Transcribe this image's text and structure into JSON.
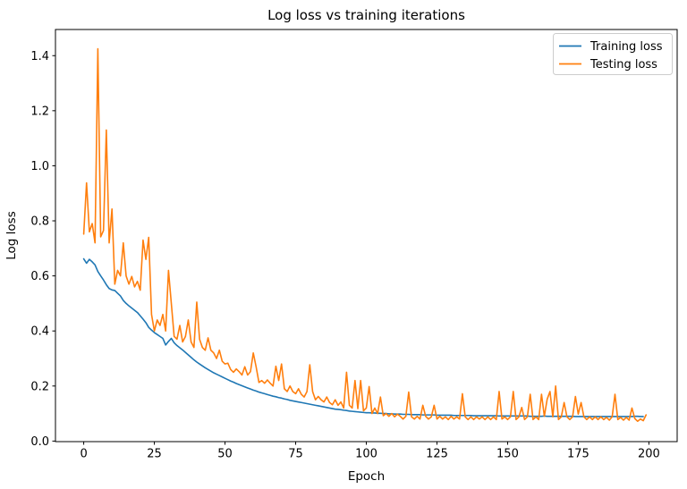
{
  "figure": {
    "background": "#ffffff",
    "frame_color": "#000000",
    "accent_colors": {
      "training": "#1f77b4",
      "testing": "#ff7f0e"
    }
  },
  "chart_data": {
    "type": "line",
    "title": "Log loss vs training iterations",
    "xlabel": "Epoch",
    "ylabel": "Log loss",
    "xlim": [
      -10,
      210
    ],
    "ylim": [
      -0.002,
      1.495
    ],
    "xticks": [
      0,
      25,
      50,
      75,
      100,
      125,
      150,
      175,
      200
    ],
    "xtick_labels": [
      "0",
      "25",
      "50",
      "75",
      "100",
      "125",
      "150",
      "175",
      "200"
    ],
    "yticks": [
      0.0,
      0.2,
      0.4,
      0.6,
      0.8,
      1.0,
      1.2,
      1.4
    ],
    "ytick_labels": [
      "0.0",
      "0.2",
      "0.4",
      "0.6",
      "0.8",
      "1.0",
      "1.2",
      "1.4"
    ],
    "grid": false,
    "legend_position": "upper right",
    "x": [
      0,
      1,
      2,
      3,
      4,
      5,
      6,
      7,
      8,
      9,
      10,
      11,
      12,
      13,
      14,
      15,
      16,
      17,
      18,
      19,
      20,
      21,
      22,
      23,
      24,
      25,
      26,
      27,
      28,
      29,
      30,
      31,
      32,
      33,
      34,
      35,
      36,
      37,
      38,
      39,
      40,
      41,
      42,
      43,
      44,
      45,
      46,
      47,
      48,
      49,
      50,
      51,
      52,
      53,
      54,
      55,
      56,
      57,
      58,
      59,
      60,
      61,
      62,
      63,
      64,
      65,
      66,
      67,
      68,
      69,
      70,
      71,
      72,
      73,
      74,
      75,
      76,
      77,
      78,
      79,
      80,
      81,
      82,
      83,
      84,
      85,
      86,
      87,
      88,
      89,
      90,
      91,
      92,
      93,
      94,
      95,
      96,
      97,
      98,
      99,
      100,
      101,
      102,
      103,
      104,
      105,
      106,
      107,
      108,
      109,
      110,
      111,
      112,
      113,
      114,
      115,
      116,
      117,
      118,
      119,
      120,
      121,
      122,
      123,
      124,
      125,
      126,
      127,
      128,
      129,
      130,
      131,
      132,
      133,
      134,
      135,
      136,
      137,
      138,
      139,
      140,
      141,
      142,
      143,
      144,
      145,
      146,
      147,
      148,
      149,
      150,
      151,
      152,
      153,
      154,
      155,
      156,
      157,
      158,
      159,
      160,
      161,
      162,
      163,
      164,
      165,
      166,
      167,
      168,
      169,
      170,
      171,
      172,
      173,
      174,
      175,
      176,
      177,
      178,
      179,
      180,
      181,
      182,
      183,
      184,
      185,
      186,
      187,
      188,
      189,
      190,
      191,
      192,
      193,
      194,
      195,
      196,
      197,
      198,
      199
    ],
    "series": [
      {
        "name": "Training loss",
        "color": "#1f77b4",
        "values": [
          0.662,
          0.646,
          0.66,
          0.651,
          0.64,
          0.616,
          0.6,
          0.585,
          0.568,
          0.554,
          0.549,
          0.547,
          0.537,
          0.527,
          0.511,
          0.5,
          0.491,
          0.483,
          0.475,
          0.467,
          0.455,
          0.443,
          0.43,
          0.413,
          0.403,
          0.394,
          0.387,
          0.38,
          0.373,
          0.349,
          0.362,
          0.373,
          0.357,
          0.347,
          0.339,
          0.331,
          0.322,
          0.313,
          0.304,
          0.295,
          0.287,
          0.28,
          0.273,
          0.266,
          0.26,
          0.254,
          0.248,
          0.243,
          0.238,
          0.233,
          0.228,
          0.223,
          0.218,
          0.214,
          0.209,
          0.205,
          0.201,
          0.197,
          0.193,
          0.189,
          0.185,
          0.182,
          0.178,
          0.175,
          0.172,
          0.169,
          0.166,
          0.163,
          0.161,
          0.158,
          0.156,
          0.153,
          0.151,
          0.148,
          0.146,
          0.144,
          0.142,
          0.14,
          0.138,
          0.136,
          0.134,
          0.132,
          0.13,
          0.128,
          0.126,
          0.124,
          0.122,
          0.12,
          0.118,
          0.116,
          0.115,
          0.114,
          0.112,
          0.111,
          0.109,
          0.108,
          0.107,
          0.106,
          0.105,
          0.104,
          0.103,
          0.103,
          0.102,
          0.102,
          0.101,
          0.101,
          0.1,
          0.1,
          0.099,
          0.099,
          0.098,
          0.098,
          0.098,
          0.097,
          0.097,
          0.097,
          0.096,
          0.096,
          0.096,
          0.096,
          0.095,
          0.095,
          0.095,
          0.095,
          0.095,
          0.094,
          0.094,
          0.094,
          0.094,
          0.094,
          0.094,
          0.093,
          0.093,
          0.093,
          0.093,
          0.093,
          0.093,
          0.093,
          0.092,
          0.092,
          0.092,
          0.092,
          0.092,
          0.092,
          0.092,
          0.092,
          0.092,
          0.091,
          0.091,
          0.091,
          0.091,
          0.091,
          0.091,
          0.091,
          0.091,
          0.091,
          0.091,
          0.091,
          0.09,
          0.09,
          0.09,
          0.09,
          0.09,
          0.091,
          0.09,
          0.09,
          0.09,
          0.09,
          0.09,
          0.09,
          0.09,
          0.09,
          0.09,
          0.09,
          0.089,
          0.089,
          0.089,
          0.089,
          0.089,
          0.089,
          0.089,
          0.089,
          0.089,
          0.089,
          0.089,
          0.089,
          0.089,
          0.089,
          0.089,
          0.089,
          0.089,
          0.089,
          0.089,
          0.089,
          0.089,
          0.09,
          0.09,
          0.089,
          0.089
        ]
      },
      {
        "name": "Testing loss",
        "color": "#ff7f0e",
        "values": [
          0.752,
          0.938,
          0.76,
          0.79,
          0.72,
          1.425,
          0.742,
          0.765,
          1.13,
          0.72,
          0.843,
          0.57,
          0.62,
          0.6,
          0.72,
          0.6,
          0.57,
          0.598,
          0.56,
          0.58,
          0.548,
          0.73,
          0.66,
          0.74,
          0.46,
          0.4,
          0.44,
          0.42,
          0.46,
          0.4,
          0.62,
          0.5,
          0.38,
          0.37,
          0.42,
          0.36,
          0.38,
          0.44,
          0.36,
          0.34,
          0.505,
          0.37,
          0.34,
          0.33,
          0.375,
          0.33,
          0.32,
          0.3,
          0.33,
          0.29,
          0.28,
          0.283,
          0.26,
          0.25,
          0.262,
          0.252,
          0.24,
          0.27,
          0.24,
          0.252,
          0.32,
          0.27,
          0.213,
          0.22,
          0.21,
          0.222,
          0.21,
          0.2,
          0.272,
          0.22,
          0.28,
          0.19,
          0.18,
          0.2,
          0.18,
          0.172,
          0.19,
          0.17,
          0.16,
          0.18,
          0.277,
          0.18,
          0.15,
          0.162,
          0.15,
          0.142,
          0.16,
          0.14,
          0.132,
          0.15,
          0.13,
          0.142,
          0.12,
          0.25,
          0.13,
          0.12,
          0.22,
          0.118,
          0.22,
          0.11,
          0.12,
          0.198,
          0.1,
          0.12,
          0.1,
          0.16,
          0.092,
          0.1,
          0.09,
          0.1,
          0.088,
          0.098,
          0.09,
          0.08,
          0.09,
          0.178,
          0.088,
          0.08,
          0.09,
          0.08,
          0.13,
          0.09,
          0.08,
          0.088,
          0.13,
          0.08,
          0.09,
          0.08,
          0.088,
          0.078,
          0.09,
          0.08,
          0.088,
          0.08,
          0.172,
          0.088,
          0.078,
          0.088,
          0.078,
          0.088,
          0.08,
          0.088,
          0.078,
          0.088,
          0.078,
          0.088,
          0.078,
          0.18,
          0.08,
          0.088,
          0.078,
          0.088,
          0.18,
          0.078,
          0.088,
          0.122,
          0.078,
          0.088,
          0.17,
          0.078,
          0.088,
          0.078,
          0.17,
          0.09,
          0.152,
          0.18,
          0.088,
          0.2,
          0.078,
          0.088,
          0.14,
          0.088,
          0.078,
          0.088,
          0.162,
          0.098,
          0.14,
          0.088,
          0.078,
          0.088,
          0.078,
          0.088,
          0.078,
          0.088,
          0.078,
          0.086,
          0.076,
          0.088,
          0.17,
          0.078,
          0.086,
          0.076,
          0.086,
          0.076,
          0.12,
          0.082,
          0.072,
          0.08,
          0.074,
          0.095
        ]
      }
    ]
  }
}
